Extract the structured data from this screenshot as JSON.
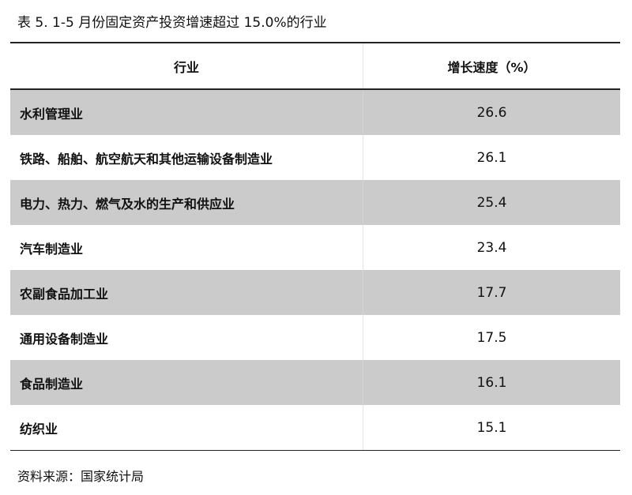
{
  "title": "表 5.   1-5 月份固定资产投资增速超过 15.0%的行业",
  "table": {
    "headers": [
      "行业",
      "增长速度（%）"
    ],
    "rows": [
      {
        "industry": "水利管理业",
        "growth": "26.6"
      },
      {
        "industry": "铁路、船舶、航空航天和其他运输设备制造业",
        "growth": "26.1"
      },
      {
        "industry": "电力、热力、燃气及水的生产和供应业",
        "growth": "25.4"
      },
      {
        "industry": "汽车制造业",
        "growth": "23.4"
      },
      {
        "industry": "农副食品加工业",
        "growth": "17.7"
      },
      {
        "industry": "通用设备制造业",
        "growth": "17.5"
      },
      {
        "industry": "食品制造业",
        "growth": "16.1"
      },
      {
        "industry": "纺织业",
        "growth": "15.1"
      }
    ],
    "shade_color": "#cbcbcb"
  },
  "source": "资料来源：国家统计局"
}
